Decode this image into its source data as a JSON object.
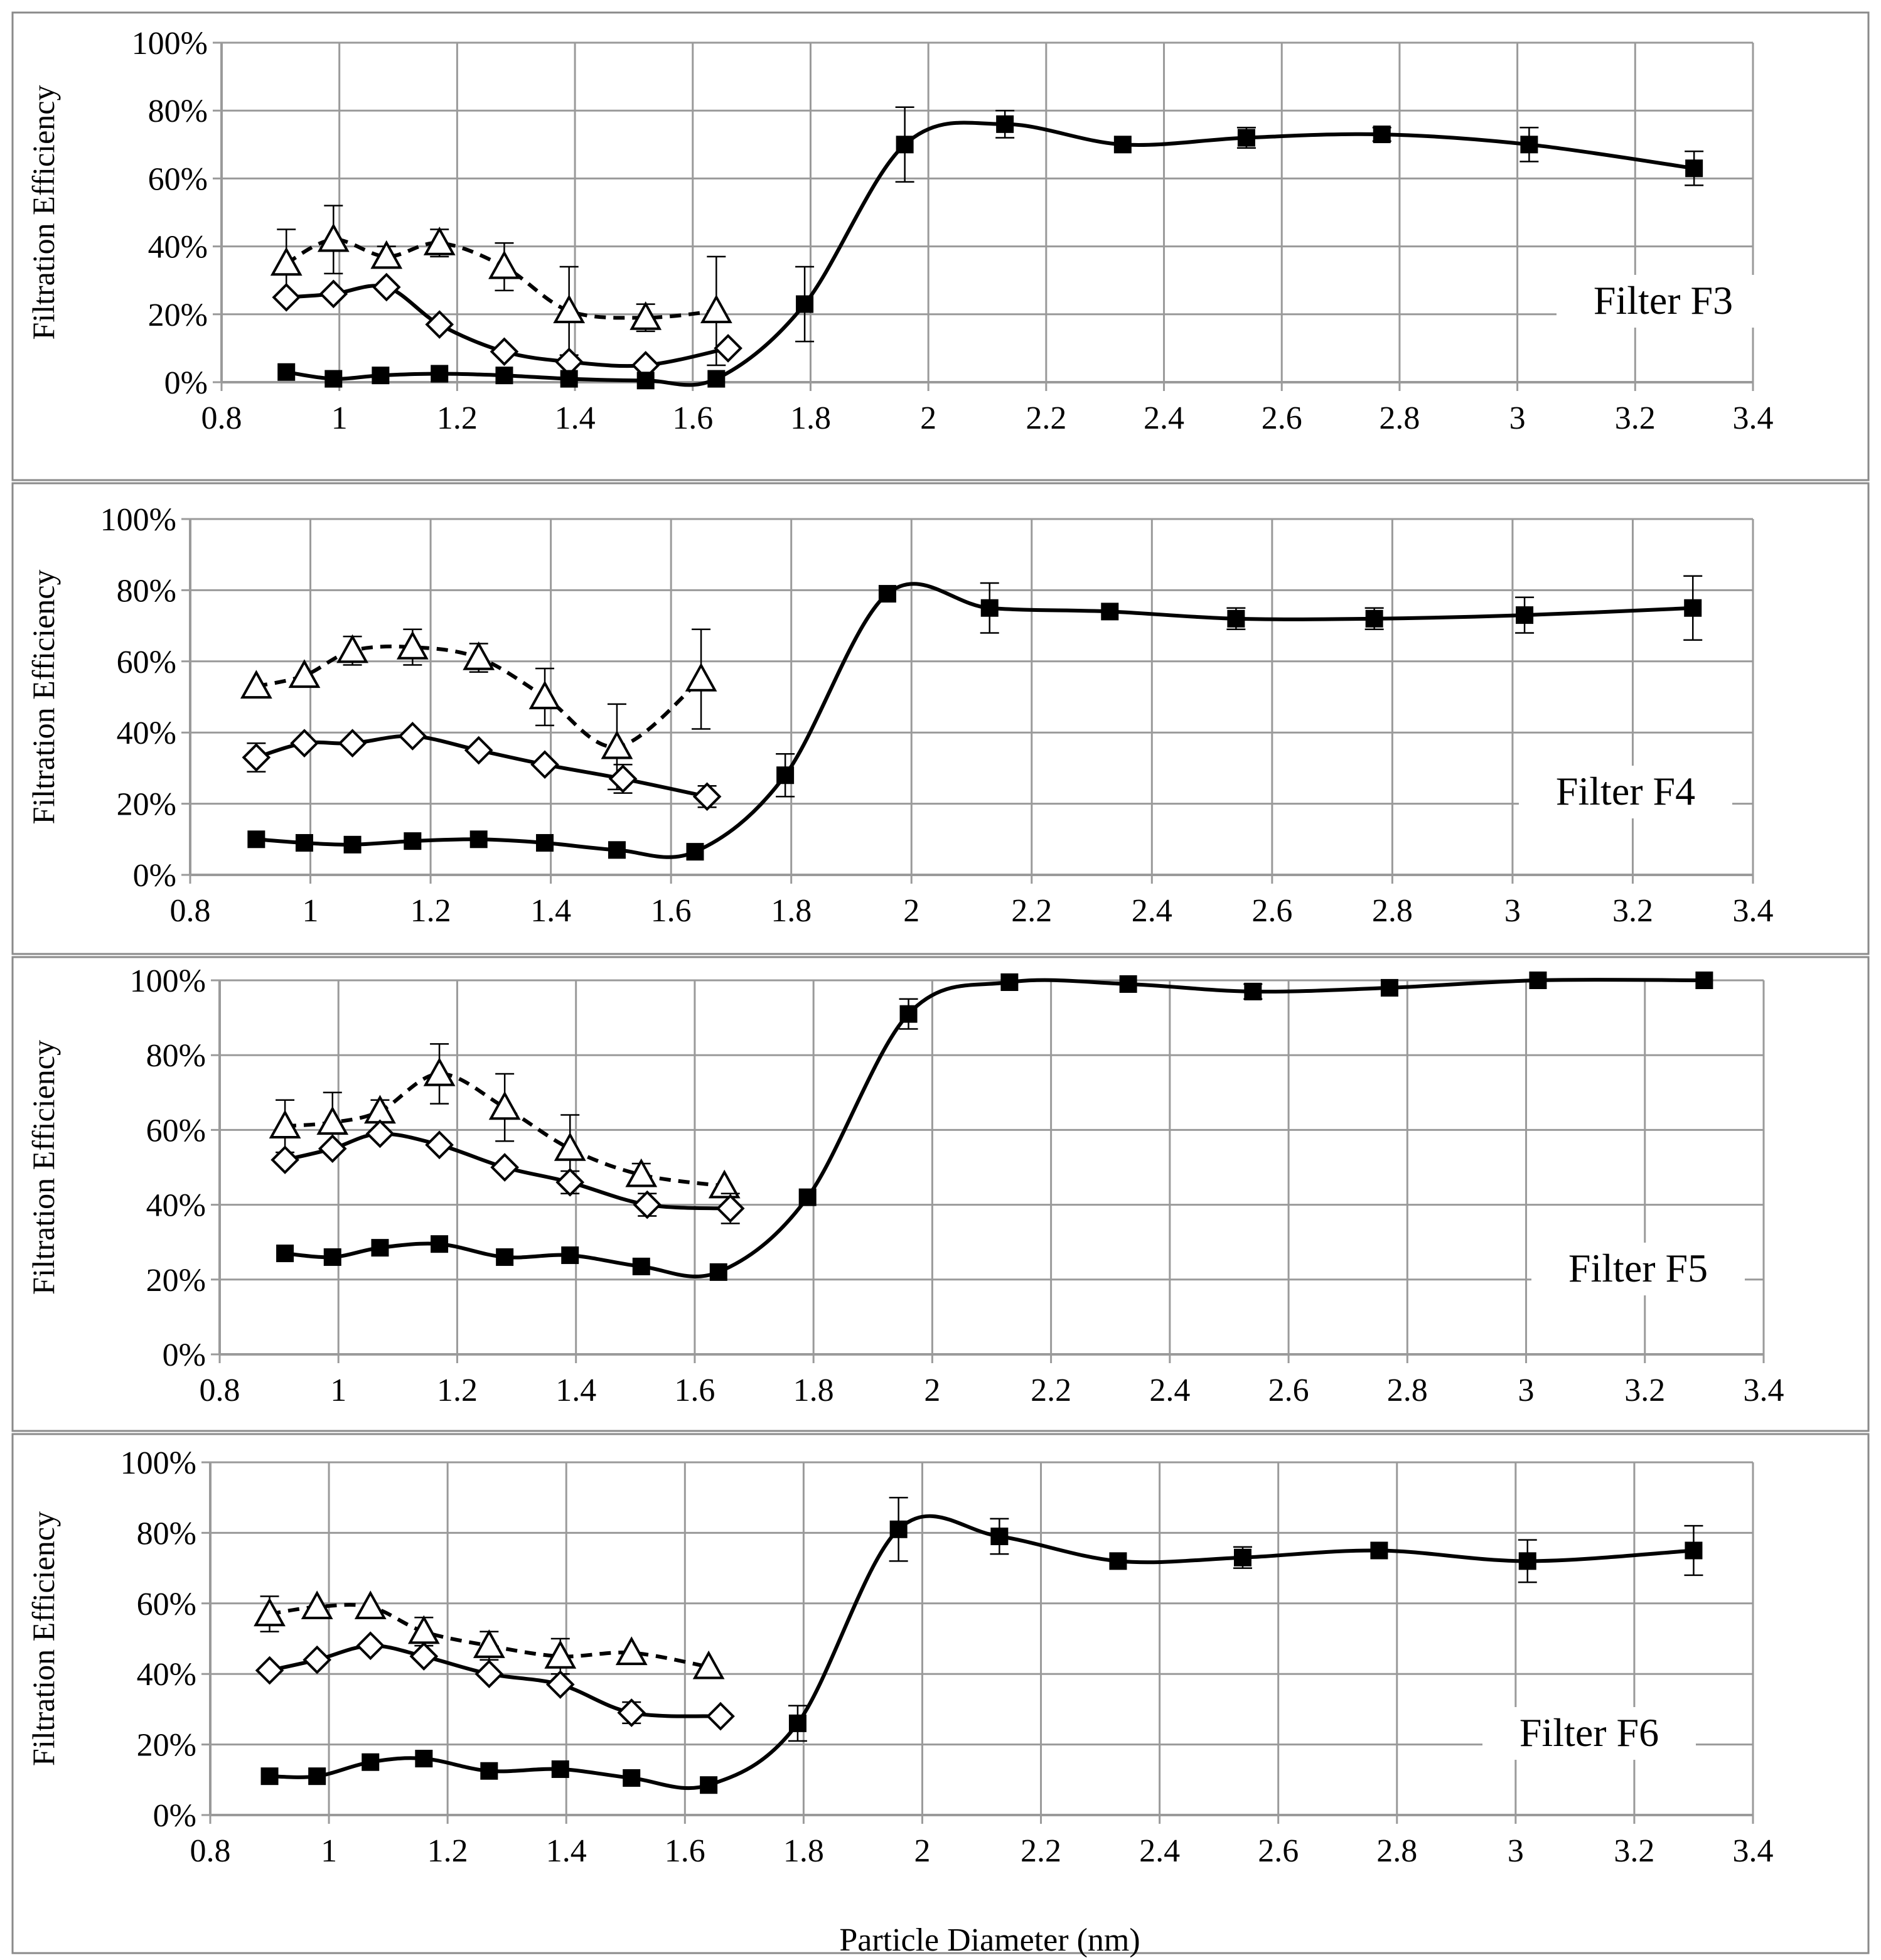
{
  "x_axis_label": "Particle Diameter (nm)",
  "chart_data": [
    {
      "type": "line",
      "title": "Filter F3",
      "xlabel": "",
      "ylabel": "Filtration Efficiency",
      "xlim": [
        0.8,
        3.4
      ],
      "ylim": [
        0,
        100
      ],
      "x_ticks": [
        "0.8",
        "1",
        "1.2",
        "1.4",
        "1.6",
        "1.8",
        "2",
        "2.2",
        "2.4",
        "2.6",
        "2.8",
        "3",
        "3.2",
        "3.4"
      ],
      "y_ticks": [
        "0%",
        "20%",
        "40%",
        "60%",
        "80%",
        "100%"
      ],
      "grid": true,
      "series": [
        {
          "name": "triangle",
          "marker": "triangle",
          "dashed": true,
          "x": [
            0.91,
            0.99,
            1.08,
            1.17,
            1.28,
            1.39,
            1.52,
            1.64
          ],
          "y": [
            35,
            42,
            37,
            41,
            34,
            21,
            19,
            21
          ],
          "err": [
            10,
            10,
            3,
            4,
            7,
            13,
            4,
            16
          ]
        },
        {
          "name": "diamond",
          "marker": "diamond",
          "dashed": false,
          "x": [
            0.91,
            0.99,
            1.08,
            1.17,
            1.28,
            1.39,
            1.52,
            1.66
          ],
          "y": [
            25,
            26,
            28,
            17,
            9,
            6,
            5,
            10
          ],
          "err": [
            0,
            0,
            0,
            0,
            0,
            0,
            0,
            0
          ]
        },
        {
          "name": "square",
          "marker": "square",
          "dashed": false,
          "x": [
            0.91,
            0.99,
            1.07,
            1.17,
            1.28,
            1.39,
            1.52,
            1.64,
            1.79,
            1.96,
            2.13,
            2.33,
            2.54,
            2.77,
            3.02,
            3.3
          ],
          "y": [
            3,
            1,
            2,
            2.5,
            2,
            1,
            0.5,
            1,
            23,
            70,
            76,
            70,
            72,
            73,
            70,
            63
          ],
          "err": [
            0,
            0,
            0,
            0,
            0,
            0,
            0,
            0,
            11,
            11,
            4,
            0,
            3,
            2,
            5,
            5
          ]
        }
      ]
    },
    {
      "type": "line",
      "title": "Filter F4",
      "xlabel": "",
      "ylabel": "Filtration Efficiency",
      "xlim": [
        0.8,
        3.4
      ],
      "ylim": [
        0,
        100
      ],
      "x_ticks": [
        "0.8",
        "1",
        "1.2",
        "1.4",
        "1.6",
        "1.8",
        "2",
        "2.2",
        "2.4",
        "2.6",
        "2.8",
        "3",
        "3.2",
        "3.4"
      ],
      "y_ticks": [
        "0%",
        "20%",
        "40%",
        "60%",
        "80%",
        "100%"
      ],
      "grid": true,
      "series": [
        {
          "name": "triangle",
          "marker": "triangle",
          "dashed": true,
          "x": [
            0.91,
            0.99,
            1.07,
            1.17,
            1.28,
            1.39,
            1.51,
            1.65
          ],
          "y": [
            53,
            56,
            63,
            64,
            61,
            50,
            36,
            55
          ],
          "err": [
            0,
            0,
            4,
            5,
            4,
            8,
            12,
            14
          ]
        },
        {
          "name": "diamond",
          "marker": "diamond",
          "dashed": false,
          "x": [
            0.91,
            0.99,
            1.07,
            1.17,
            1.28,
            1.39,
            1.52,
            1.66
          ],
          "y": [
            33,
            37,
            37,
            39,
            35,
            31,
            27,
            22
          ],
          "err": [
            4,
            0,
            0,
            0,
            0,
            0,
            4,
            3
          ]
        },
        {
          "name": "square",
          "marker": "square",
          "dashed": false,
          "x": [
            0.91,
            0.99,
            1.07,
            1.17,
            1.28,
            1.39,
            1.51,
            1.64,
            1.79,
            1.96,
            2.13,
            2.33,
            2.54,
            2.77,
            3.02,
            3.3
          ],
          "y": [
            10,
            9,
            8.5,
            9.5,
            10,
            9,
            7,
            6.5,
            28,
            79,
            75,
            74,
            72,
            72,
            73,
            75
          ],
          "err": [
            0,
            0,
            0,
            0,
            0,
            0,
            0,
            0,
            6,
            0,
            7,
            0,
            3,
            3,
            5,
            9
          ]
        }
      ]
    },
    {
      "type": "line",
      "title": "Filter F5",
      "xlabel": "",
      "ylabel": "Filtration Efficiency",
      "xlim": [
        0.8,
        3.4
      ],
      "ylim": [
        0,
        100
      ],
      "x_ticks": [
        "0.8",
        "1",
        "1.2",
        "1.4",
        "1.6",
        "1.8",
        "2",
        "2.2",
        "2.4",
        "2.6",
        "2.8",
        "3",
        "3.2",
        "3.4"
      ],
      "y_ticks": [
        "0%",
        "20%",
        "40%",
        "60%",
        "80%",
        "100%"
      ],
      "grid": true,
      "series": [
        {
          "name": "triangle",
          "marker": "triangle",
          "dashed": true,
          "x": [
            0.91,
            0.99,
            1.07,
            1.17,
            1.28,
            1.39,
            1.51,
            1.65
          ],
          "y": [
            61,
            62,
            65,
            75,
            66,
            55,
            48,
            45
          ],
          "err": [
            7,
            8,
            3,
            8,
            9,
            9,
            3,
            0
          ]
        },
        {
          "name": "diamond",
          "marker": "diamond",
          "dashed": false,
          "x": [
            0.91,
            0.99,
            1.07,
            1.17,
            1.28,
            1.39,
            1.52,
            1.66
          ],
          "y": [
            52,
            55,
            59,
            56,
            50,
            46,
            40,
            39
          ],
          "err": [
            0,
            0,
            0,
            0,
            0,
            3,
            3,
            4
          ]
        },
        {
          "name": "square",
          "marker": "square",
          "dashed": false,
          "x": [
            0.91,
            0.99,
            1.07,
            1.17,
            1.28,
            1.39,
            1.51,
            1.64,
            1.79,
            1.96,
            2.13,
            2.33,
            2.54,
            2.77,
            3.02,
            3.3
          ],
          "y": [
            27,
            26,
            28.5,
            29.5,
            26,
            26.5,
            23.5,
            22,
            42,
            91,
            99.5,
            99,
            97,
            98,
            100,
            100
          ],
          "err": [
            0,
            0,
            0,
            0,
            0,
            0,
            0,
            0,
            0,
            4,
            0,
            0,
            2,
            0,
            0,
            0
          ]
        }
      ]
    },
    {
      "type": "line",
      "title": "Filter F6",
      "xlabel": "Particle Diameter (nm)",
      "ylabel": "Filtration Efficiency",
      "xlim": [
        0.8,
        3.4
      ],
      "ylim": [
        0,
        100
      ],
      "x_ticks": [
        "0.8",
        "1",
        "1.2",
        "1.4",
        "1.6",
        "1.8",
        "2",
        "2.2",
        "2.4",
        "2.6",
        "2.8",
        "3",
        "3.2",
        "3.4"
      ],
      "y_ticks": [
        "0%",
        "20%",
        "40%",
        "60%",
        "80%",
        "100%"
      ],
      "grid": true,
      "series": [
        {
          "name": "triangle",
          "marker": "triangle",
          "dashed": true,
          "x": [
            0.9,
            0.98,
            1.07,
            1.16,
            1.27,
            1.39,
            1.51,
            1.64
          ],
          "y": [
            57,
            59,
            59,
            52,
            48,
            45,
            46,
            42
          ],
          "err": [
            5,
            0,
            0,
            4,
            4,
            5,
            0,
            0
          ]
        },
        {
          "name": "diamond",
          "marker": "diamond",
          "dashed": false,
          "x": [
            0.9,
            0.98,
            1.07,
            1.16,
            1.27,
            1.39,
            1.51,
            1.66
          ],
          "y": [
            41,
            44,
            48,
            45,
            40,
            37,
            29,
            28
          ],
          "err": [
            0,
            0,
            0,
            0,
            0,
            0,
            3,
            0
          ]
        },
        {
          "name": "square",
          "marker": "square",
          "dashed": false,
          "x": [
            0.9,
            0.98,
            1.07,
            1.16,
            1.27,
            1.39,
            1.51,
            1.64,
            1.79,
            1.96,
            2.13,
            2.33,
            2.54,
            2.77,
            3.02,
            3.3
          ],
          "y": [
            11,
            11,
            15,
            16,
            12.5,
            13,
            10.5,
            8.5,
            26,
            81,
            79,
            72,
            73,
            75,
            72,
            75
          ],
          "err": [
            0,
            0,
            0,
            0,
            0,
            0,
            0,
            0,
            5,
            9,
            5,
            0,
            3,
            0,
            6,
            7
          ]
        }
      ]
    }
  ]
}
